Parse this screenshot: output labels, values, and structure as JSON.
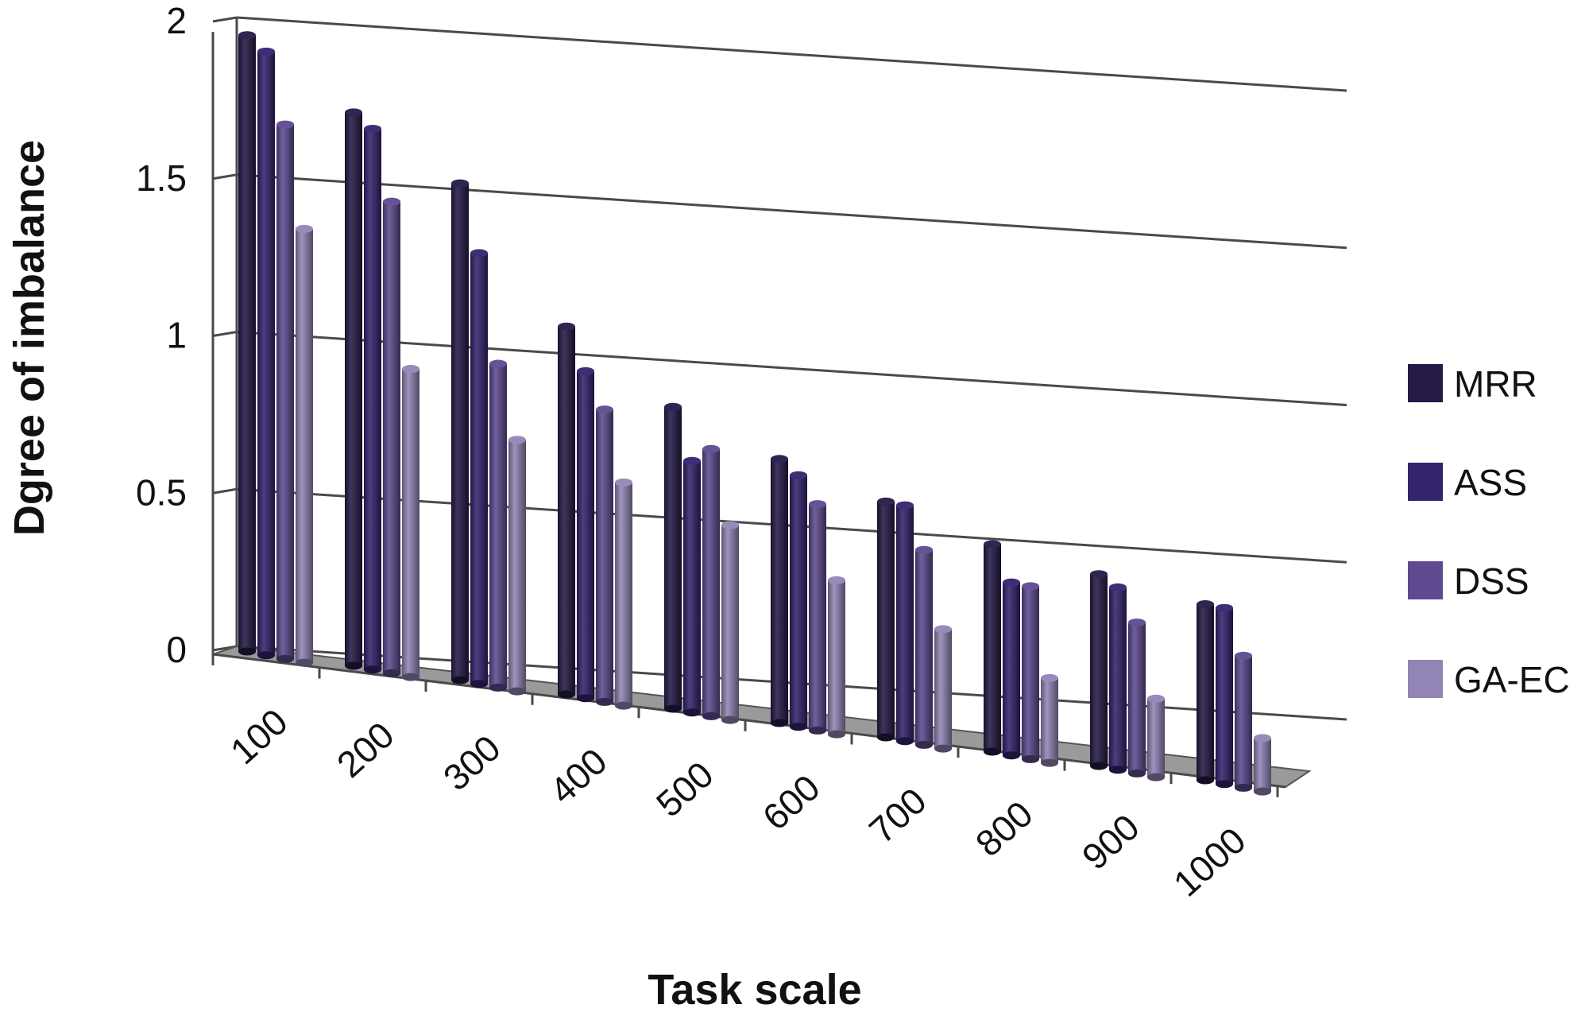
{
  "chart_data": {
    "type": "bar",
    "title": "",
    "xlabel": "Task scale",
    "ylabel": "Dgree of imbalance",
    "categories": [
      "100",
      "200",
      "300",
      "400",
      "500",
      "600",
      "700",
      "800",
      "900",
      "1000"
    ],
    "series": [
      {
        "name": "MRR",
        "color": "#251a47",
        "values": [
          1.96,
          1.76,
          1.58,
          1.17,
          0.96,
          0.84,
          0.75,
          0.66,
          0.61,
          0.56
        ]
      },
      {
        "name": "ASS",
        "color": "#35236e",
        "values": [
          1.92,
          1.72,
          1.37,
          1.04,
          0.8,
          0.8,
          0.75,
          0.55,
          0.58,
          0.56
        ]
      },
      {
        "name": "DSS",
        "color": "#5e4a90",
        "values": [
          1.7,
          1.5,
          1.03,
          0.93,
          0.85,
          0.72,
          0.62,
          0.55,
          0.48,
          0.42
        ]
      },
      {
        "name": "GA-EC",
        "color": "#9384b6",
        "values": [
          1.38,
          0.98,
          0.8,
          0.71,
          0.62,
          0.49,
          0.38,
          0.27,
          0.25,
          0.17
        ]
      }
    ],
    "y_ticks": [
      "0",
      "0.5",
      "1",
      "1.5",
      "2"
    ],
    "ylim": [
      0,
      2
    ],
    "grid": true,
    "legend_position": "right",
    "style": "3d-cylinder"
  }
}
